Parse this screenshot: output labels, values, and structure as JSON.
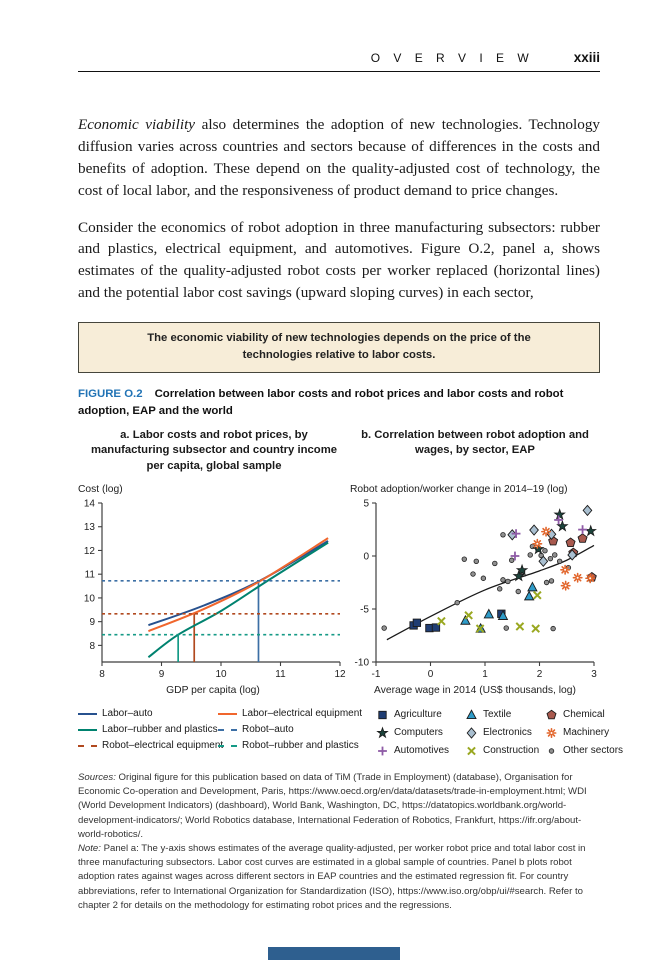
{
  "header": {
    "section": "O V E R V I E W",
    "page_number": "xxiii"
  },
  "paragraphs": {
    "p1_lead_italic": "Economic viability",
    "p1_rest": " also determines the adoption of new technologies. Technology diffusion varies across countries and sectors because of differences in the costs and benefits of adoption. These depend on the quality-adjusted cost of technology, the cost of local labor, and the responsiveness of product demand to price changes.",
    "p2": "Consider the economics of robot adoption in three manufacturing subsectors: rubber and plastics, electrical equipment, and automotives. Figure O.2, panel a, shows estimates of the quality-adjusted robot costs per worker replaced (horizontal lines) and the potential labor cost savings (upward sloping curves) in each sector,"
  },
  "callout_box": {
    "text": "The economic viability of new technologies depends on the price of the technologies relative to labor costs.",
    "background": "#f7edd8",
    "border": "#46463c"
  },
  "figure": {
    "label": "FIGURE O.2",
    "label_color": "#2173b5",
    "title": "Correlation between labor costs and robot prices and labor costs and robot adoption, EAP and the world"
  },
  "chart_data": [
    {
      "id": "panel_a",
      "type": "line",
      "title": "a. Labor costs and robot prices, by manufacturing subsector and country income per capita, global sample",
      "ylabel": "Cost (log)",
      "xlabel": "GDP per capita (log)",
      "xlim": [
        8,
        12
      ],
      "ylim": [
        7.3,
        14
      ],
      "xticks": [
        8,
        9,
        10,
        11,
        12
      ],
      "yticks": [
        8,
        9,
        10,
        11,
        12,
        13,
        14
      ],
      "grid": false,
      "series": [
        {
          "name": "Labor–auto",
          "style": "solid",
          "color": "#27518e",
          "points": [
            [
              8.78,
              8.85
            ],
            [
              9.7,
              9.67
            ],
            [
              10.65,
              10.72
            ],
            [
              11.8,
              12.4
            ]
          ]
        },
        {
          "name": "Labor–electrical equipment",
          "style": "solid",
          "color": "#f0662d",
          "points": [
            [
              8.78,
              8.6
            ],
            [
              9.7,
              9.52
            ],
            [
              10.65,
              10.7
            ],
            [
              11.8,
              12.52
            ]
          ]
        },
        {
          "name": "Labor–rubber and plastics",
          "style": "solid",
          "color": "#00826f",
          "points": [
            [
              8.78,
              7.5
            ],
            [
              9.28,
              8.45
            ],
            [
              10.0,
              9.45
            ],
            [
              10.8,
              10.75
            ],
            [
              11.8,
              12.33
            ]
          ]
        },
        {
          "name": "Robot–auto",
          "style": "dashed",
          "color": "#3c6fa5",
          "points": [
            [
              8,
              10.72
            ],
            [
              12,
              10.72
            ]
          ]
        },
        {
          "name": "Robot–electrical equipment",
          "style": "dashed",
          "color": "#b1491f",
          "points": [
            [
              8,
              9.33
            ],
            [
              12,
              9.33
            ]
          ]
        },
        {
          "name": "Robot–rubber and plastics",
          "style": "dashed",
          "color": "#159a86",
          "points": [
            [
              8,
              8.45
            ],
            [
              12,
              8.45
            ]
          ]
        }
      ],
      "vlines": [
        {
          "x": 9.28,
          "y_top": 8.45,
          "color": "#159a86"
        },
        {
          "x": 9.55,
          "y_top": 9.33,
          "color": "#b1491f"
        },
        {
          "x": 10.63,
          "y_top": 10.72,
          "color": "#3c6fa5"
        }
      ]
    },
    {
      "id": "panel_b",
      "type": "scatter",
      "title": "b. Correlation between robot adoption and wages, by sector, EAP",
      "ylabel": "Robot adoption/worker change in 2014–19 (log)",
      "xlabel": "Average wage in 2014 (US$ thousands, log)",
      "xlim": [
        -1,
        3
      ],
      "ylim": [
        -10,
        5
      ],
      "xticks": [
        -1,
        0,
        1,
        2,
        3
      ],
      "yticks": [
        -10,
        -5,
        0,
        5
      ],
      "grid": false,
      "fit_line": {
        "color": "#1a1a1a",
        "points": [
          [
            -0.8,
            -7.9
          ],
          [
            0,
            -5.7
          ],
          [
            1,
            -3.2
          ],
          [
            2,
            -1.4
          ],
          [
            2.5,
            -0.4
          ],
          [
            3,
            1.0
          ]
        ]
      },
      "series": [
        {
          "name": "Agriculture",
          "marker": "square",
          "color": "#1f3d73",
          "points": [
            [
              -0.31,
              -6.55
            ],
            [
              -0.25,
              -6.3
            ],
            [
              -0.02,
              -6.8
            ],
            [
              0.1,
              -6.75
            ],
            [
              1.3,
              -5.45
            ]
          ]
        },
        {
          "name": "Textile",
          "marker": "triangle",
          "color": "#2e9bc8",
          "points": [
            [
              0.64,
              -6.1
            ],
            [
              0.92,
              -6.85
            ],
            [
              1.07,
              -5.5
            ],
            [
              1.33,
              -5.65
            ],
            [
              1.81,
              -3.8
            ],
            [
              1.87,
              -2.95
            ]
          ]
        },
        {
          "name": "Chemical",
          "marker": "pentagon",
          "color": "#a8594e",
          "points": [
            [
              2.25,
              1.4
            ],
            [
              2.57,
              1.25
            ],
            [
              2.79,
              1.65
            ],
            [
              2.62,
              0.3
            ],
            [
              2.96,
              -2.0
            ]
          ]
        },
        {
          "name": "Computers",
          "marker": "star",
          "color": "#1c443c",
          "points": [
            [
              2.37,
              3.9
            ],
            [
              2.42,
              2.8
            ],
            [
              2.94,
              2.35
            ],
            [
              1.98,
              0.65
            ],
            [
              1.68,
              -1.35
            ],
            [
              1.62,
              -1.9
            ]
          ]
        },
        {
          "name": "Electronics",
          "marker": "diamond",
          "color": "#a9bfd0",
          "points": [
            [
              2.88,
              4.3
            ],
            [
              1.9,
              2.45
            ],
            [
              2.22,
              2.05
            ],
            [
              1.5,
              2.0
            ],
            [
              2.6,
              0.1
            ],
            [
              2.07,
              -0.5
            ]
          ]
        },
        {
          "name": "Machinery",
          "marker": "asterisk",
          "color": "#e2662c",
          "points": [
            [
              2.12,
              2.3
            ],
            [
              1.96,
              1.15
            ],
            [
              2.47,
              -1.3
            ],
            [
              2.7,
              -2.05
            ],
            [
              2.48,
              -2.8
            ],
            [
              2.93,
              -2.1
            ]
          ]
        },
        {
          "name": "Automotives",
          "marker": "plus",
          "color": "#8e5ba6",
          "points": [
            [
              2.35,
              3.4
            ],
            [
              1.57,
              2.11
            ],
            [
              2.79,
              2.49
            ],
            [
              1.55,
              0.0
            ]
          ]
        },
        {
          "name": "Construction",
          "marker": "x",
          "color": "#9aa821",
          "points": [
            [
              0.2,
              -6.15
            ],
            [
              0.7,
              -5.6
            ],
            [
              0.91,
              -6.85
            ],
            [
              1.64,
              -6.65
            ],
            [
              1.93,
              -6.85
            ],
            [
              1.96,
              -3.7
            ]
          ]
        },
        {
          "name": "Other sectors",
          "marker": "dot",
          "color": "#909090",
          "points": [
            [
              -0.85,
              -6.8
            ],
            [
              0.49,
              -4.4
            ],
            [
              0.62,
              -0.3
            ],
            [
              0.78,
              -1.7
            ],
            [
              0.84,
              -0.5
            ],
            [
              0.97,
              -2.1
            ],
            [
              1.18,
              -0.7
            ],
            [
              1.27,
              -3.1
            ],
            [
              1.33,
              -2.25
            ],
            [
              1.42,
              -2.4
            ],
            [
              1.39,
              -6.8
            ],
            [
              1.61,
              -3.35
            ],
            [
              1.69,
              -1.5
            ],
            [
              1.49,
              -0.4
            ],
            [
              1.33,
              2.0
            ],
            [
              1.83,
              0.1
            ],
            [
              1.87,
              0.9
            ],
            [
              1.97,
              0.63
            ],
            [
              2.03,
              0.05
            ],
            [
              2.1,
              0.5
            ],
            [
              2.2,
              -0.25
            ],
            [
              2.28,
              0.1
            ],
            [
              2.37,
              -0.5
            ],
            [
              2.13,
              -2.5
            ],
            [
              2.22,
              -2.35
            ],
            [
              2.53,
              -1.1
            ],
            [
              2.25,
              -6.85
            ]
          ]
        }
      ]
    }
  ],
  "sources_note": {
    "sources_label": "Sources:",
    "sources_text": " Original figure for this publication based on data of TiM (Trade in Employment) (database), Organisation for Economic Co-operation and Development, Paris, https://www.oecd.org/en/data/datasets/trade-in-employment.html; WDI (World Development Indicators) (dashboard), World Bank, Washington, DC, https://datatopics.worldbank.org/world-development-indicators/; World Robotics database, International Federation of Robotics, Frankfurt, https://ifr.org/about-world-robotics/.",
    "note_label": "Note:",
    "note_text": " Panel a: The y-axis shows estimates of the average quality-adjusted, per worker robot price and total labor cost in three manufacturing subsectors. Labor cost curves are estimated in a global sample of countries. Panel b plots robot adoption rates against wages across different sectors in EAP countries and the estimated regression fit. For country abbreviations, refer to International Organization for Standardization (ISO), https://www.iso.org/obp/ui/#search. Refer to chapter 2 for details on the methodology for estimating robot prices and the regressions."
  },
  "footer": {
    "bar_color": "#2e5f8f"
  }
}
